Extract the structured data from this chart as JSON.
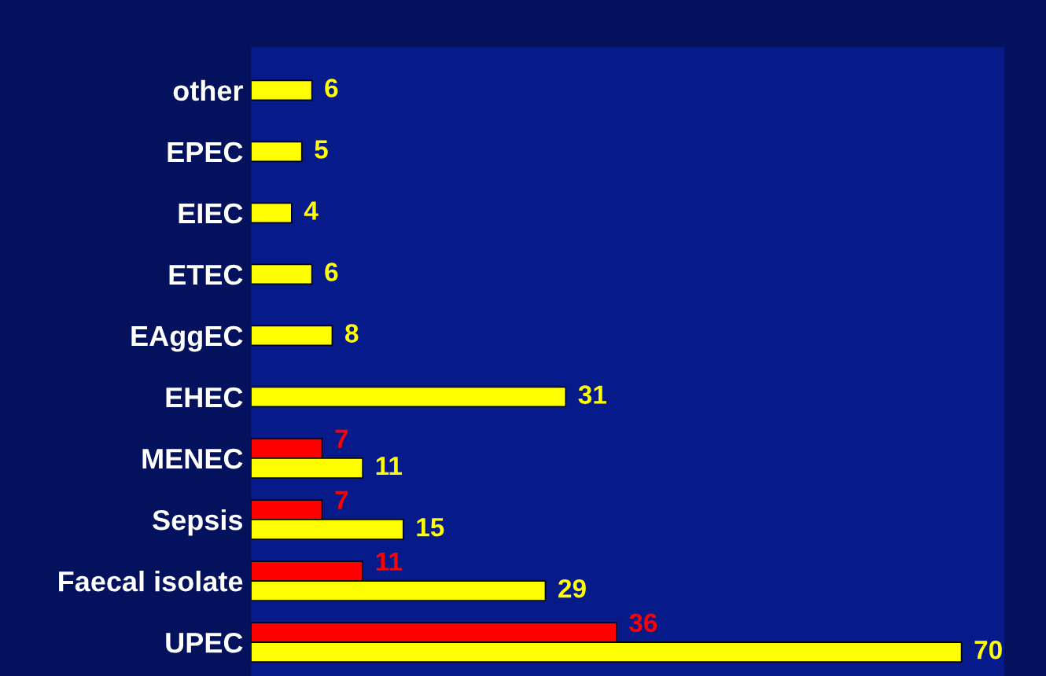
{
  "chart_data": {
    "type": "bar",
    "orientation": "horizontal",
    "categories": [
      "other",
      "EPEC",
      "EIEC",
      "ETEC",
      "EAggEC",
      "EHEC",
      "MENEC",
      "Sepsis",
      "Faecal isolate",
      "UPEC"
    ],
    "series": [
      {
        "color": "#ff0000",
        "values": [
          null,
          null,
          null,
          null,
          null,
          null,
          7,
          7,
          11,
          36
        ]
      },
      {
        "color": "#ffff00",
        "values": [
          6,
          5,
          4,
          6,
          8,
          31,
          11,
          15,
          29,
          70
        ]
      }
    ],
    "data_labels": true,
    "tick_labels": "y",
    "grid": false,
    "legend": false
  }
}
